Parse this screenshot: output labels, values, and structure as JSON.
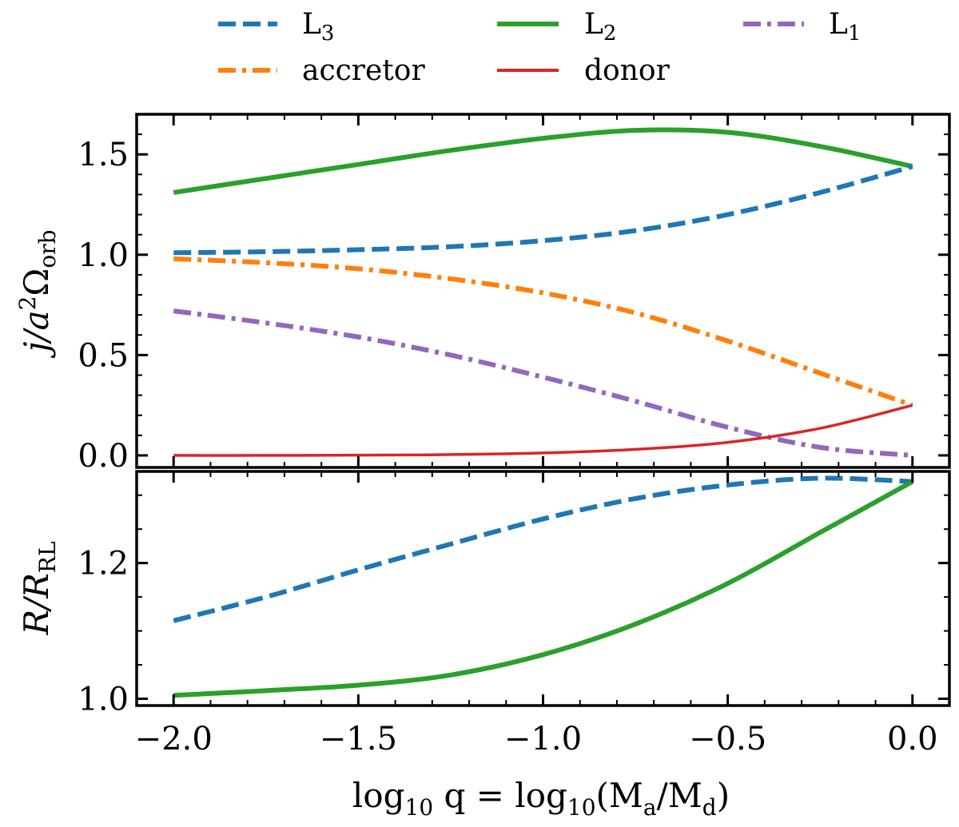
{
  "chart_data": {
    "type": "line",
    "x_axis": {
      "label_parts": [
        "log",
        "10",
        " q = log",
        "10",
        "(M",
        "a",
        "/M",
        "d",
        ")"
      ],
      "xlim": [
        -2.1,
        0.1
      ],
      "ticks": [
        -2.0,
        -1.5,
        -1.0,
        -0.5,
        0.0
      ],
      "tick_labels": [
        "−2.0",
        "−1.5",
        "−1.0",
        "−0.5",
        "0.0"
      ],
      "minor_step": 0.1
    },
    "legend": {
      "placement": "top, above panels, 3 columns",
      "entries": [
        {
          "key": "L3",
          "text": "L",
          "sub": "3"
        },
        {
          "key": "L2",
          "text": "L",
          "sub": "2"
        },
        {
          "key": "L1",
          "text": "L",
          "sub": "1"
        },
        {
          "key": "accretor",
          "text": "accretor",
          "sub": ""
        },
        {
          "key": "donor",
          "text": "donor",
          "sub": ""
        }
      ]
    },
    "styles": {
      "L3": {
        "color": "#1f77b4",
        "dash": "dashed"
      },
      "L2": {
        "color": "#2ca02c",
        "dash": "solid"
      },
      "L1": {
        "color": "#9467bd",
        "dash": "dashdot"
      },
      "accretor": {
        "color": "#ff7f0e",
        "dash": "dashdot"
      },
      "donor": {
        "color": "#d62728",
        "dash": "solid-thin"
      }
    },
    "x": [
      -2.0,
      -1.75,
      -1.5,
      -1.25,
      -1.0,
      -0.75,
      -0.5,
      -0.25,
      0.0
    ],
    "panels": [
      {
        "id": "top",
        "ylabel_parts": [
          "j/a",
          "2",
          "Ω",
          "orb"
        ],
        "ylim": [
          -0.06,
          1.7
        ],
        "ticks": [
          0.0,
          0.5,
          1.0,
          1.5
        ],
        "tick_labels": [
          "0.0",
          "0.5",
          "1.0",
          "1.5"
        ],
        "minor_step": 0.1,
        "series": [
          {
            "name": "L2",
            "values": [
              1.31,
              1.38,
              1.45,
              1.52,
              1.58,
              1.62,
              1.61,
              1.54,
              1.44
            ]
          },
          {
            "name": "L3",
            "values": [
              1.01,
              1.015,
              1.025,
              1.04,
              1.07,
              1.12,
              1.2,
              1.31,
              1.44
            ]
          },
          {
            "name": "accretor",
            "values": [
              0.98,
              0.96,
              0.93,
              0.88,
              0.81,
              0.71,
              0.57,
              0.41,
              0.25
            ]
          },
          {
            "name": "L1",
            "values": [
              0.72,
              0.66,
              0.59,
              0.5,
              0.39,
              0.27,
              0.14,
              0.04,
              0.0
            ]
          },
          {
            "name": "donor",
            "values": [
              0.0,
              0.0,
              0.001,
              0.004,
              0.012,
              0.03,
              0.065,
              0.135,
              0.25
            ]
          }
        ]
      },
      {
        "id": "bottom",
        "ylabel_parts": [
          "R/R",
          "RL"
        ],
        "ylim": [
          0.99,
          1.335
        ],
        "ticks": [
          1.0,
          1.2
        ],
        "tick_labels": [
          "1.0",
          "1.2"
        ],
        "minor_step": 0.05,
        "series": [
          {
            "name": "L3",
            "values": [
              1.115,
              1.15,
              1.19,
              1.228,
              1.265,
              1.295,
              1.315,
              1.325,
              1.32
            ]
          },
          {
            "name": "L2",
            "values": [
              1.005,
              1.012,
              1.02,
              1.035,
              1.065,
              1.11,
              1.17,
              1.245,
              1.32
            ]
          }
        ]
      }
    ]
  }
}
